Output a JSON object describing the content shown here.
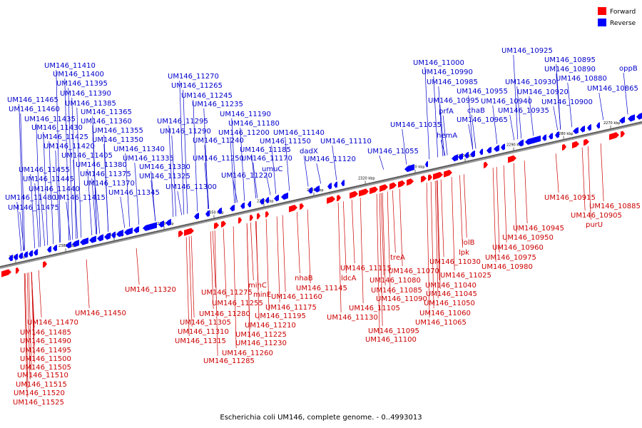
{
  "legend": {
    "forward": {
      "label": "Forward",
      "color": "#ff0000"
    },
    "reverse": {
      "label": "Reverse",
      "color": "#0000ff"
    }
  },
  "caption": "Escherichia coli UM146, complete genome. - 0..4993013",
  "ticks": [
    "2390 kbp",
    "2380 kbp",
    "2370 kbp",
    "2360 kbp",
    "2350 kbp",
    "2340 kbp",
    "2330 kbp",
    "2320 kbp",
    "2310 kbp",
    "2300 kbp",
    "2290 kbp",
    "2280 kbp",
    "2270 kbp"
  ],
  "reverse_labels": [
    "UM146_11410",
    "UM146_11400",
    "UM146_11395",
    "UM146_11390",
    "UM146_11465",
    "UM146_11385",
    "UM146_11460",
    "UM146_11365",
    "UM146_11435",
    "UM146_11360",
    "UM146_11430",
    "UM146_11355",
    "UM146_11425",
    "UM146_11350",
    "UM146_11420",
    "UM146_11340",
    "UM146_11405",
    "UM146_11335",
    "UM146_11380",
    "UM146_11330",
    "UM146_11455",
    "UM146_11375",
    "UM146_11325",
    "UM146_11445",
    "UM146_11370",
    "UM146_11440",
    "UM146_11345",
    "UM146_11480",
    "UM146_11415",
    "UM146_11475",
    "UM146_11270",
    "UM146_11265",
    "UM146_11245",
    "UM146_11235",
    "UM146_11190",
    "UM146_11295",
    "UM146_11180",
    "UM146_11290",
    "UM146_11200",
    "UM146_11140",
    "UM146_11240",
    "UM146_11185",
    "UM146_11150",
    "UM146_11110",
    "UM146_11250",
    "UM146_11170",
    "UM146_11220",
    "UM146_11300",
    "umuC",
    "dadX",
    "UM146_11120",
    "UM146_11000",
    "UM146_10990",
    "UM146_10985",
    "UM146_10955",
    "UM146_10995",
    "prfA",
    "chaB",
    "UM146_11035",
    "hemA",
    "UM146_10965",
    "UM146_11055",
    "UM146_10925",
    "UM146_10895",
    "UM146_10890",
    "UM146_10880",
    "UM146_10930",
    "UM146_10920",
    "UM146_10940",
    "UM146_10900",
    "UM146_10935",
    "UM146_10865",
    "oppB"
  ],
  "forward_labels": [
    "UM146_11450",
    "UM146_11470",
    "UM146_11485",
    "UM146_11490",
    "UM146_11495",
    "UM146_11500",
    "UM146_11505",
    "UM146_11510",
    "UM146_11515",
    "UM146_11520",
    "UM146_11525",
    "UM146_11320",
    "UM146_11305",
    "UM146_11310",
    "UM146_11315",
    "UM146_11275",
    "UM146_11255",
    "UM146_11280",
    "UM146_11285",
    "UM146_11260",
    "UM146_11225",
    "UM146_11230",
    "UM146_11210",
    "UM146_11195",
    "UM146_11175",
    "UM146_11160",
    "minC",
    "minE",
    "nhaB",
    "UM146_11145",
    "ldcA",
    "UM146_11130",
    "UM146_11115",
    "UM146_11105",
    "UM146_11095",
    "UM146_11100",
    "treA",
    "UM146_11070",
    "UM146_11080",
    "UM146_11085",
    "UM146_11090",
    "UM146_11040",
    "UM146_11045",
    "UM146_11050",
    "UM146_11060",
    "UM146_11065",
    "UM146_11025",
    "UM146_11030",
    "lpk",
    "lolB",
    "UM146_10945",
    "UM146_10950",
    "UM146_10960",
    "UM146_10975",
    "UM146_10980",
    "UM146_10915",
    "UM146_10885",
    "UM146_10905",
    "purU"
  ]
}
